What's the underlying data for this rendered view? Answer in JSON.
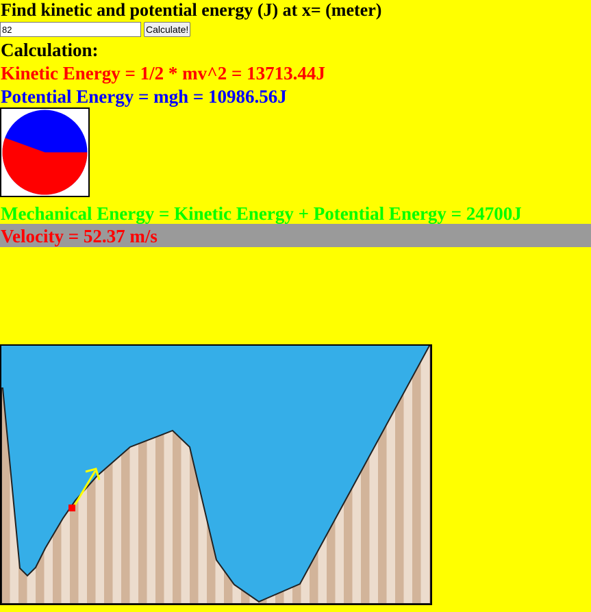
{
  "header": {
    "title": "Find kinetic and potential energy (J) at x= (meter)"
  },
  "form": {
    "x_value": "82",
    "calculate_label": "Calculate!"
  },
  "results": {
    "calculation_heading": "Calculation:",
    "kinetic": "Kinetic Energy = 1/2 * mv^2 = 13713.44J",
    "potential": "Potential Energy = mgh = 10986.56J",
    "mechanical": "Mechanical Energy = Kinetic Energy + Potential Energy = 24700J",
    "velocity": "Velocity = 52.37 m/s"
  },
  "energy_pie": {
    "kinetic_value": 13713.44,
    "potential_value": 10986.56
  },
  "colors": {
    "page_background": "#ffff00",
    "kinetic": "#ff0000",
    "potential": "#0000ff",
    "mechanical": "#00ff00",
    "velocity_bar": "#9a9a9a",
    "sky": "#35aee8",
    "ground_light": "#ecdccd",
    "ground_dark": "#d2b49a",
    "velocity_arrow": "#ffff00",
    "object": "#ff0000"
  }
}
